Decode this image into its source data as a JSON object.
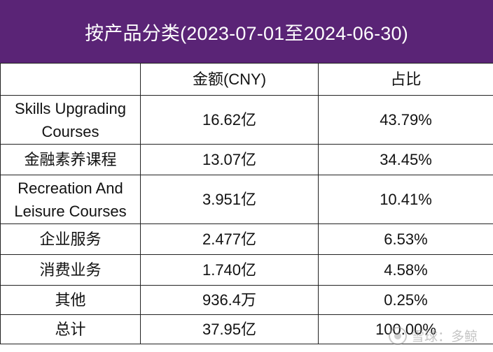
{
  "title": "按产品分类(2023-07-01至2024-06-30)",
  "columns": [
    "",
    "金额(CNY)",
    "占比"
  ],
  "rows": [
    {
      "name": "Skills Upgrading Courses",
      "amount": "16.62亿",
      "share": "43.79%"
    },
    {
      "name": "金融素养课程",
      "amount": "13.07亿",
      "share": "34.45%"
    },
    {
      "name": "Recreation And Leisure Courses",
      "amount": "3.951亿",
      "share": "10.41%"
    },
    {
      "name": "企业服务",
      "amount": "2.477亿",
      "share": "6.53%"
    },
    {
      "name": "消费业务",
      "amount": "1.740亿",
      "share": "4.58%"
    },
    {
      "name": "其他",
      "amount": "936.4万",
      "share": "0.25%"
    },
    {
      "name": "总计",
      "amount": "37.95亿",
      "share": "100.00%"
    }
  ],
  "watermark": {
    "text": "雪球：多鲸",
    "icon": "snowball-logo-icon"
  },
  "colors": {
    "header_bg": "#5a2476",
    "header_text": "#ffffff",
    "border": "#222222"
  }
}
